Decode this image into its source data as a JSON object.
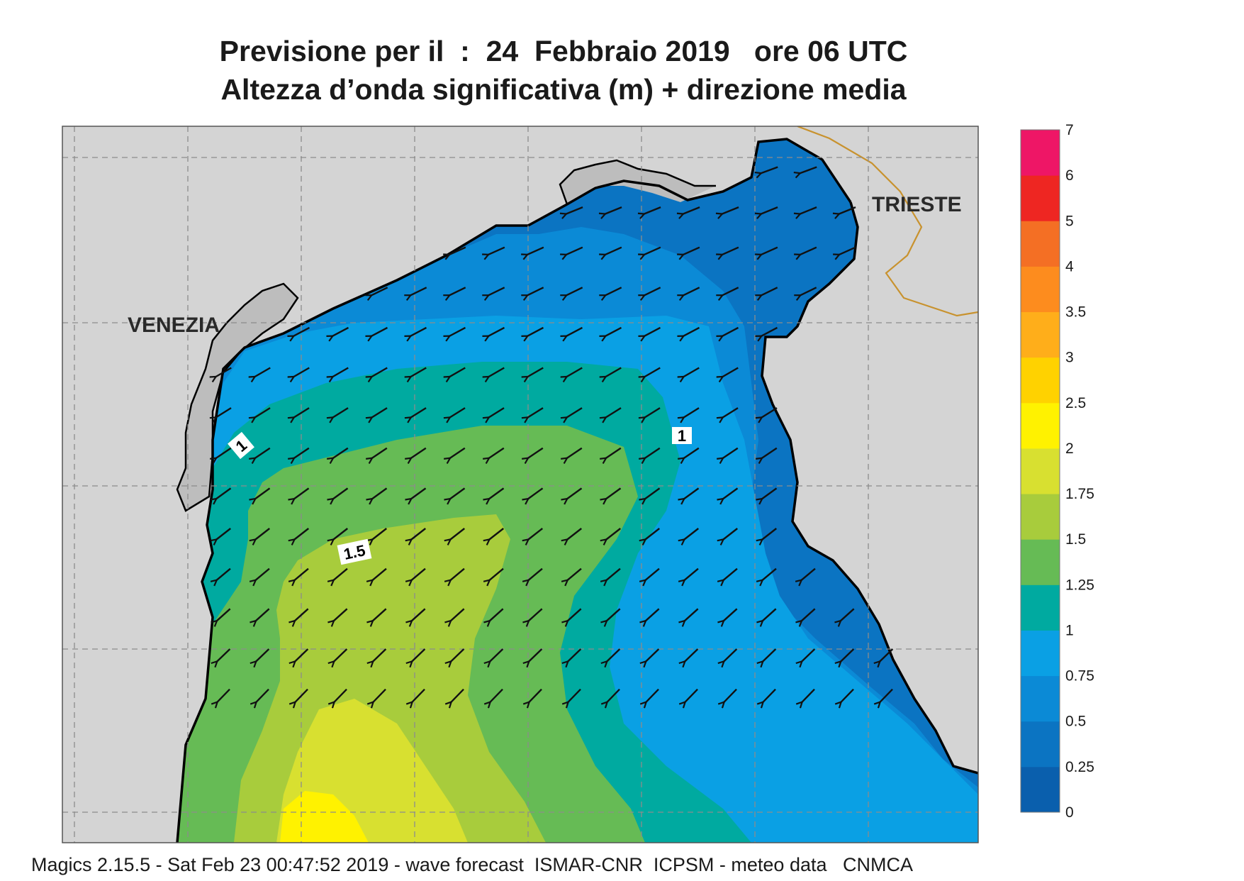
{
  "title_line1": "Previsione per il  :  24  Febbraio 2019   ore 06 UTC",
  "title_line2": "Altezza d’onda significativa (m) + direzione media",
  "footer": "Magics 2.15.5 - Sat Feb 23 00:47:52 2019 - wave forecast  ISMAR-CNR  ICPSM - meteo data   CNMCA",
  "cities": [
    {
      "name": "VENEZIA"
    },
    {
      "name": "TRIESTE"
    }
  ],
  "contour_labels": [
    "1",
    "1.5",
    "1"
  ],
  "colors": {
    "land": "#d4d4d4",
    "coast": "#000000",
    "border": "#c8922e",
    "grid": "#8c8c8c"
  },
  "colorbar": {
    "levels": [
      "0",
      "0.25",
      "0.5",
      "0.75",
      "1",
      "1.25",
      "1.5",
      "1.75",
      "2",
      "2.5",
      "3",
      "3.5",
      "4",
      "5",
      "6",
      "7"
    ],
    "colors": [
      "#0a5fad",
      "#0b74c2",
      "#0b8ad6",
      "#0aa0e4",
      "#00aaa0",
      "#66bb55",
      "#a8cc3c",
      "#d8e030",
      "#fff200",
      "#ffd200",
      "#ffae1a",
      "#fd8c1e",
      "#f46f24",
      "#ee2622",
      "#ee1666"
    ]
  },
  "wave_direction": "south-west"
}
